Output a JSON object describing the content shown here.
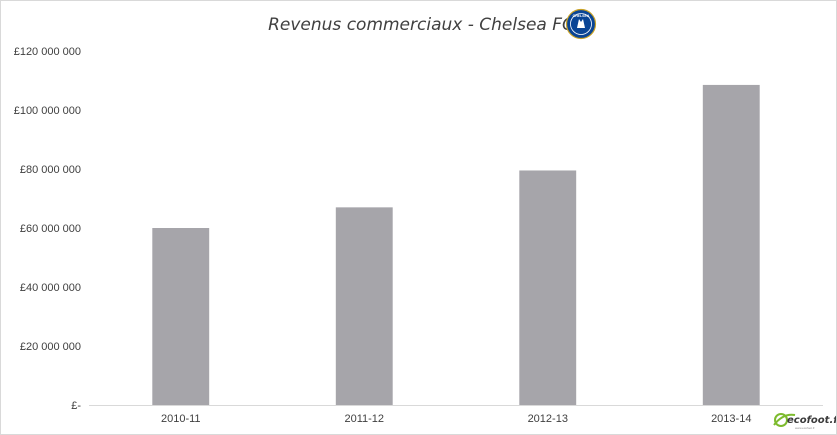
{
  "chart_data": {
    "type": "bar",
    "title": "Revenus commerciaux - Chelsea FC",
    "categories": [
      "2010-11",
      "2011-12",
      "2012-13",
      "2013-14"
    ],
    "values": [
      60000000,
      67000000,
      79500000,
      108500000
    ],
    "ylim": [
      0,
      120000000
    ],
    "yticks": [
      0,
      20000000,
      40000000,
      60000000,
      80000000,
      100000000,
      120000000
    ],
    "ytick_labels": [
      "£-",
      "£20 000 000",
      "£40 000 000",
      "£60 000 000",
      "£80 000 000",
      "£100 000 000",
      "£120 000 000"
    ],
    "xlabel": "",
    "ylabel": "",
    "grid": false,
    "legend": "none",
    "bar_color": "#a6a5aa",
    "axis_color": "#d9d9d9"
  },
  "crest": {
    "text": "CHELSEA",
    "icon": "chelsea-crest-icon",
    "color": "#0a4595"
  },
  "watermark": {
    "text": "ecofoot.fr",
    "subtext": "www.ecofoot.fr",
    "icon": "ecofoot-logo-icon",
    "color": "#7dbb2e"
  }
}
